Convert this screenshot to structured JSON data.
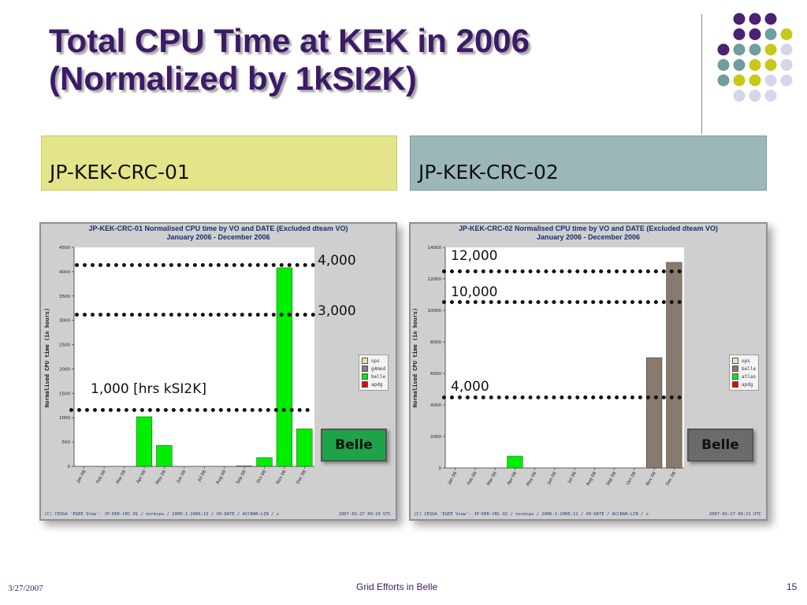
{
  "slide": {
    "title_line1": "Total CPU Time at KEK in 2006",
    "title_line2": "(Normalized by 1kSI2K)",
    "header_left": "JP-KEK-CRC-01",
    "header_right": "JP-KEK-CRC-02",
    "belle_label": "Belle",
    "footer_date": "3/27/2007",
    "footer_center": "Grid Efforts in Belle",
    "footer_page": "15",
    "colors": {
      "title": "#3d1a68",
      "header_left_bg": "#e4e58a",
      "header_right_bg": "#9cb7b8",
      "belle_green": "#1ea34a",
      "belle_gray": "#6b6b6b"
    }
  },
  "annotations": {
    "left": [
      "4,000",
      "3,000",
      "1,000 [hrs kSI2K]"
    ],
    "right": [
      "12,000",
      "10,000",
      "4,000"
    ]
  },
  "chart_data": [
    {
      "type": "bar",
      "title": "JP-KEK-CRC-01 Normalised CPU time by VO and DATE (Excluded dteam VO)",
      "subtitle": "January 2006 - December 2006",
      "ylabel": "Normalised CPU time (in hours)",
      "categories": [
        "Jan 06",
        "Feb 06",
        "Mar 06",
        "Apr 06",
        "May 06",
        "Jun 06",
        "Jul 06",
        "Aug 06",
        "Sep 06",
        "Oct 06",
        "Nov 06",
        "Dec 06"
      ],
      "ylim": [
        0,
        4500
      ],
      "yticks": [
        "0",
        "500",
        "1000",
        "1500",
        "2000",
        "2500",
        "3000",
        "3500",
        "4000",
        "4500"
      ],
      "ytick_values": [
        0,
        500,
        1000,
        1500,
        2000,
        2500,
        3000,
        3500,
        4000,
        4500
      ],
      "legend": [
        {
          "name": "ops",
          "color": "#f5deb3"
        },
        {
          "name": "g4med",
          "color": "#808080"
        },
        {
          "name": "belle",
          "color": "#00ee00"
        },
        {
          "name": "apdg",
          "color": "#ee0000"
        }
      ],
      "series": [
        {
          "name": "belle",
          "color": "#00ee00",
          "values": [
            0,
            0,
            0,
            1020,
            430,
            0,
            0,
            0,
            10,
            180,
            4080,
            770
          ]
        }
      ],
      "guides": [
        4100,
        3050,
        1150
      ],
      "footer_left": "(C) CESGA 'EGEE View': JP-KEK-CRC-01 / normcpu / 2006:1-2006:12 / VO-DATE / ACCBAR-LIN / x",
      "footer_right": "2007-02-27 09:19 UTC"
    },
    {
      "type": "bar",
      "title": "JP-KEK-CRC-02 Normalised CPU time by VO and DATE (Excluded dteam VO)",
      "subtitle": "January 2006 - December 2006",
      "ylabel": "Normalised CPU time (in hours)",
      "categories": [
        "Jan 06",
        "Feb 06",
        "Mar 06",
        "Apr 06",
        "May 06",
        "Jun 06",
        "Jul 06",
        "Aug 06",
        "Sep 06",
        "Oct 06",
        "Nov 06",
        "Dec 06"
      ],
      "ylim": [
        0,
        14000
      ],
      "yticks": [
        "0",
        "2000",
        "4000",
        "6000",
        "8000",
        "10000",
        "12000",
        "14000"
      ],
      "ytick_values": [
        0,
        2000,
        4000,
        6000,
        8000,
        10000,
        12000,
        14000
      ],
      "legend": [
        {
          "name": "ops",
          "color": "#f5deb3"
        },
        {
          "name": "belle",
          "color": "#887a6c"
        },
        {
          "name": "atlas",
          "color": "#00ee00"
        },
        {
          "name": "apdg",
          "color": "#ee0000"
        }
      ],
      "series": [
        {
          "name": "atlas",
          "color": "#00ee00",
          "values": [
            0,
            0,
            0,
            750,
            0,
            0,
            0,
            0,
            0,
            0,
            0,
            0
          ]
        },
        {
          "name": "belle",
          "color": "#887a6c",
          "values": [
            0,
            0,
            0,
            0,
            0,
            0,
            0,
            0,
            0,
            0,
            7000,
            13050
          ]
        }
      ],
      "guides": [
        12500,
        10500,
        4450
      ],
      "footer_left": "(C) CESGA 'EGEE View': JP-KEK-CRC-02 / normcpu / 2006:1-2006:12 / VO-DATE / ACCBAR-LIN / x",
      "footer_right": "2007-02-27 09:21 UTC"
    }
  ]
}
